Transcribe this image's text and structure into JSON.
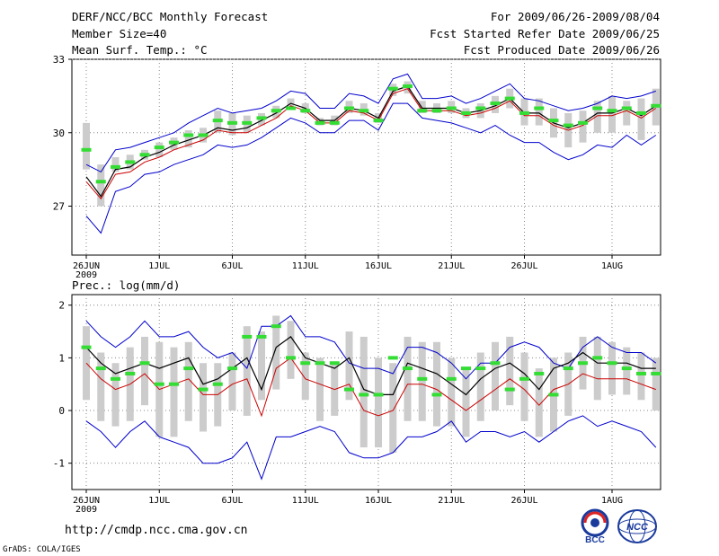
{
  "header": {
    "title": "DERF/NCC/BCC Monthly Forecast",
    "member_size": "Member Size=40",
    "variable": "Mean Surf. Temp.: °C",
    "period": "For 2009/06/26-2009/08/04",
    "started": "Fcst Started Refer Date 2009/06/25",
    "produced": "Fcst Produced Date 2009/06/26"
  },
  "footer": {
    "url": "http://cmdp.ncc.cma.gov.cn",
    "credit": "GrADS: COLA/IGES",
    "logo_bcc": "BCC",
    "logo_ncc": "NCC"
  },
  "colors": {
    "mean": "#000000",
    "median": "#cc0000",
    "bounds": "#0000cc",
    "marker": "#33dd33",
    "box": "#cccccc"
  },
  "chart_data": [
    {
      "type": "line",
      "title": "Mean Surf. Temp.: °C",
      "ylim": [
        25,
        33
      ],
      "yticks": [
        27,
        30,
        33
      ],
      "xticks": [
        "26JUN",
        "1JUL",
        "6JUL",
        "11JUL",
        "16JUL",
        "21JUL",
        "26JUL",
        "1AUG"
      ],
      "xtick_year": "2009",
      "x_days": 40,
      "series": [
        {
          "name": "max",
          "values": [
            28.7,
            28.4,
            29.3,
            29.4,
            29.6,
            29.8,
            30.0,
            30.4,
            30.7,
            31.0,
            30.8,
            30.9,
            31.0,
            31.3,
            31.7,
            31.6,
            31.0,
            31.0,
            31.6,
            31.5,
            31.2,
            32.2,
            32.4,
            31.4,
            31.4,
            31.5,
            31.2,
            31.4,
            31.7,
            32.0,
            31.4,
            31.3,
            31.1,
            30.9,
            31.0,
            31.2,
            31.5,
            31.4,
            31.5,
            31.7
          ]
        },
        {
          "name": "mean",
          "values": [
            28.2,
            27.4,
            28.5,
            28.6,
            29.0,
            29.2,
            29.5,
            29.7,
            29.9,
            30.2,
            30.1,
            30.2,
            30.5,
            30.8,
            31.2,
            31.0,
            30.5,
            30.5,
            31.0,
            30.9,
            30.6,
            31.7,
            31.9,
            31.0,
            31.0,
            31.0,
            30.8,
            30.9,
            31.1,
            31.4,
            30.8,
            30.8,
            30.4,
            30.2,
            30.4,
            30.8,
            30.8,
            31.0,
            30.7,
            31.1
          ]
        },
        {
          "name": "median",
          "values": [
            28.0,
            27.3,
            28.3,
            28.4,
            28.8,
            29.0,
            29.3,
            29.5,
            29.7,
            30.1,
            30.0,
            30.0,
            30.3,
            30.6,
            31.1,
            30.9,
            30.4,
            30.4,
            30.9,
            30.8,
            30.5,
            31.6,
            31.8,
            30.9,
            30.9,
            30.9,
            30.7,
            30.8,
            31.0,
            31.3,
            30.7,
            30.7,
            30.3,
            30.1,
            30.3,
            30.7,
            30.7,
            30.9,
            30.6,
            31.0
          ]
        },
        {
          "name": "min",
          "values": [
            26.6,
            25.9,
            27.6,
            27.8,
            28.3,
            28.4,
            28.7,
            28.9,
            29.1,
            29.5,
            29.4,
            29.5,
            29.8,
            30.2,
            30.6,
            30.4,
            30.0,
            30.0,
            30.5,
            30.5,
            30.1,
            31.2,
            31.2,
            30.6,
            30.5,
            30.4,
            30.2,
            30.0,
            30.3,
            29.9,
            29.6,
            29.6,
            29.2,
            28.9,
            29.1,
            29.5,
            29.4,
            29.9,
            29.5,
            29.9
          ]
        },
        {
          "name": "marker",
          "values": [
            29.3,
            28.0,
            28.6,
            28.8,
            29.1,
            29.4,
            29.6,
            29.9,
            29.9,
            30.5,
            30.4,
            30.4,
            30.6,
            30.9,
            31.0,
            30.9,
            30.4,
            30.4,
            31.0,
            30.9,
            30.5,
            31.8,
            31.9,
            30.9,
            30.9,
            31.0,
            30.8,
            31.0,
            31.2,
            31.4,
            30.8,
            31.0,
            30.5,
            30.3,
            30.4,
            31.0,
            30.9,
            31.0,
            30.8,
            31.1
          ]
        },
        {
          "name": "box_low",
          "values": [
            28.5,
            27.0,
            28.4,
            28.5,
            28.9,
            29.0,
            29.3,
            29.4,
            29.6,
            30.0,
            29.9,
            30.0,
            30.3,
            30.6,
            31.0,
            30.8,
            30.3,
            30.3,
            30.8,
            30.7,
            30.4,
            31.5,
            31.6,
            30.8,
            30.8,
            30.8,
            30.6,
            30.6,
            30.8,
            31.0,
            30.3,
            30.3,
            29.8,
            29.4,
            29.6,
            30.0,
            30.0,
            30.3,
            29.7,
            30.3
          ]
        },
        {
          "name": "box_high",
          "values": [
            30.4,
            28.7,
            29.0,
            29.1,
            29.3,
            29.6,
            29.8,
            30.1,
            30.2,
            30.9,
            30.8,
            30.7,
            30.8,
            31.1,
            31.4,
            31.2,
            30.6,
            30.7,
            31.3,
            31.2,
            30.8,
            32.0,
            32.1,
            31.3,
            31.2,
            31.3,
            31.0,
            31.2,
            31.5,
            31.8,
            31.4,
            31.4,
            31.0,
            30.8,
            30.9,
            31.3,
            31.5,
            31.3,
            31.4,
            31.8
          ]
        }
      ]
    },
    {
      "type": "line",
      "title": "Prec.: log(mm/d)",
      "ylim": [
        -1.5,
        2.2
      ],
      "yticks": [
        -1,
        0,
        1,
        2
      ],
      "xticks": [
        "26JUN",
        "1JUL",
        "6JUL",
        "11JUL",
        "16JUL",
        "21JUL",
        "26JUL",
        "1AUG"
      ],
      "xtick_year": "2009",
      "x_days": 40,
      "series": [
        {
          "name": "max",
          "values": [
            1.7,
            1.4,
            1.2,
            1.4,
            1.7,
            1.4,
            1.4,
            1.5,
            1.2,
            1.0,
            1.1,
            0.8,
            1.6,
            1.6,
            1.8,
            1.4,
            1.4,
            1.3,
            0.9,
            0.8,
            0.8,
            0.7,
            1.2,
            1.2,
            1.1,
            0.9,
            0.6,
            0.9,
            0.9,
            1.2,
            1.3,
            1.2,
            0.9,
            0.8,
            1.2,
            1.4,
            1.2,
            1.1,
            1.1,
            0.9
          ]
        },
        {
          "name": "mean",
          "values": [
            1.2,
            0.9,
            0.7,
            0.8,
            0.9,
            0.8,
            0.9,
            1.0,
            0.5,
            0.6,
            0.8,
            1.0,
            0.4,
            1.2,
            1.4,
            1.0,
            0.9,
            0.8,
            1.0,
            0.4,
            0.3,
            0.3,
            0.9,
            0.8,
            0.7,
            0.5,
            0.3,
            0.6,
            0.8,
            0.9,
            0.7,
            0.4,
            0.8,
            0.9,
            1.1,
            0.9,
            0.9,
            0.9,
            0.8,
            0.8
          ]
        },
        {
          "name": "median",
          "values": [
            0.9,
            0.6,
            0.4,
            0.5,
            0.7,
            0.4,
            0.5,
            0.6,
            0.3,
            0.3,
            0.5,
            0.6,
            -0.1,
            0.8,
            1.0,
            0.6,
            0.5,
            0.4,
            0.5,
            0.0,
            -0.1,
            0.0,
            0.5,
            0.5,
            0.4,
            0.2,
            0.0,
            0.2,
            0.4,
            0.6,
            0.4,
            0.1,
            0.4,
            0.5,
            0.7,
            0.6,
            0.6,
            0.6,
            0.5,
            0.4
          ]
        },
        {
          "name": "min",
          "values": [
            -0.2,
            -0.4,
            -0.7,
            -0.4,
            -0.2,
            -0.5,
            -0.6,
            -0.7,
            -1.0,
            -1.0,
            -0.9,
            -0.6,
            -1.3,
            -0.5,
            -0.5,
            -0.4,
            -0.3,
            -0.4,
            -0.8,
            -0.9,
            -0.9,
            -0.8,
            -0.5,
            -0.5,
            -0.4,
            -0.2,
            -0.6,
            -0.4,
            -0.4,
            -0.5,
            -0.4,
            -0.6,
            -0.4,
            -0.2,
            -0.1,
            -0.3,
            -0.2,
            -0.3,
            -0.4,
            -0.7
          ]
        },
        {
          "name": "marker",
          "values": [
            1.2,
            0.8,
            0.6,
            0.7,
            0.9,
            0.5,
            0.5,
            0.8,
            0.4,
            0.5,
            0.8,
            1.4,
            1.4,
            1.6,
            1.0,
            0.9,
            0.9,
            0.9,
            0.4,
            0.3,
            0.3,
            1.0,
            0.8,
            0.6,
            0.3,
            0.6,
            0.8,
            0.8,
            0.9,
            0.4,
            0.6,
            0.7,
            0.3,
            0.8,
            0.9,
            1.0,
            0.9,
            0.8,
            0.7,
            0.7
          ]
        },
        {
          "name": "box_low",
          "values": [
            0.2,
            -0.2,
            -0.3,
            -0.2,
            0.1,
            -0.5,
            -0.5,
            -0.2,
            -0.4,
            -0.3,
            0.0,
            -0.1,
            0.2,
            0.4,
            0.6,
            0.2,
            -0.2,
            -0.1,
            0.2,
            -0.7,
            -0.7,
            -0.8,
            -0.2,
            -0.2,
            -0.3,
            -0.3,
            -0.5,
            -0.2,
            0.0,
            0.1,
            -0.2,
            -0.5,
            -0.4,
            -0.1,
            0.4,
            0.2,
            0.3,
            0.3,
            0.2,
            0.0
          ]
        },
        {
          "name": "box_high",
          "values": [
            1.6,
            1.1,
            0.9,
            1.2,
            1.4,
            1.3,
            1.2,
            1.3,
            0.9,
            0.9,
            1.1,
            1.6,
            1.5,
            1.8,
            1.7,
            1.1,
            1.0,
            0.9,
            1.5,
            1.4,
            1.0,
            0.9,
            1.4,
            1.3,
            1.3,
            1.0,
            0.8,
            1.1,
            1.3,
            1.4,
            1.1,
            0.8,
            1.0,
            1.1,
            1.4,
            1.4,
            1.3,
            1.2,
            1.1,
            1.0
          ]
        }
      ]
    }
  ]
}
